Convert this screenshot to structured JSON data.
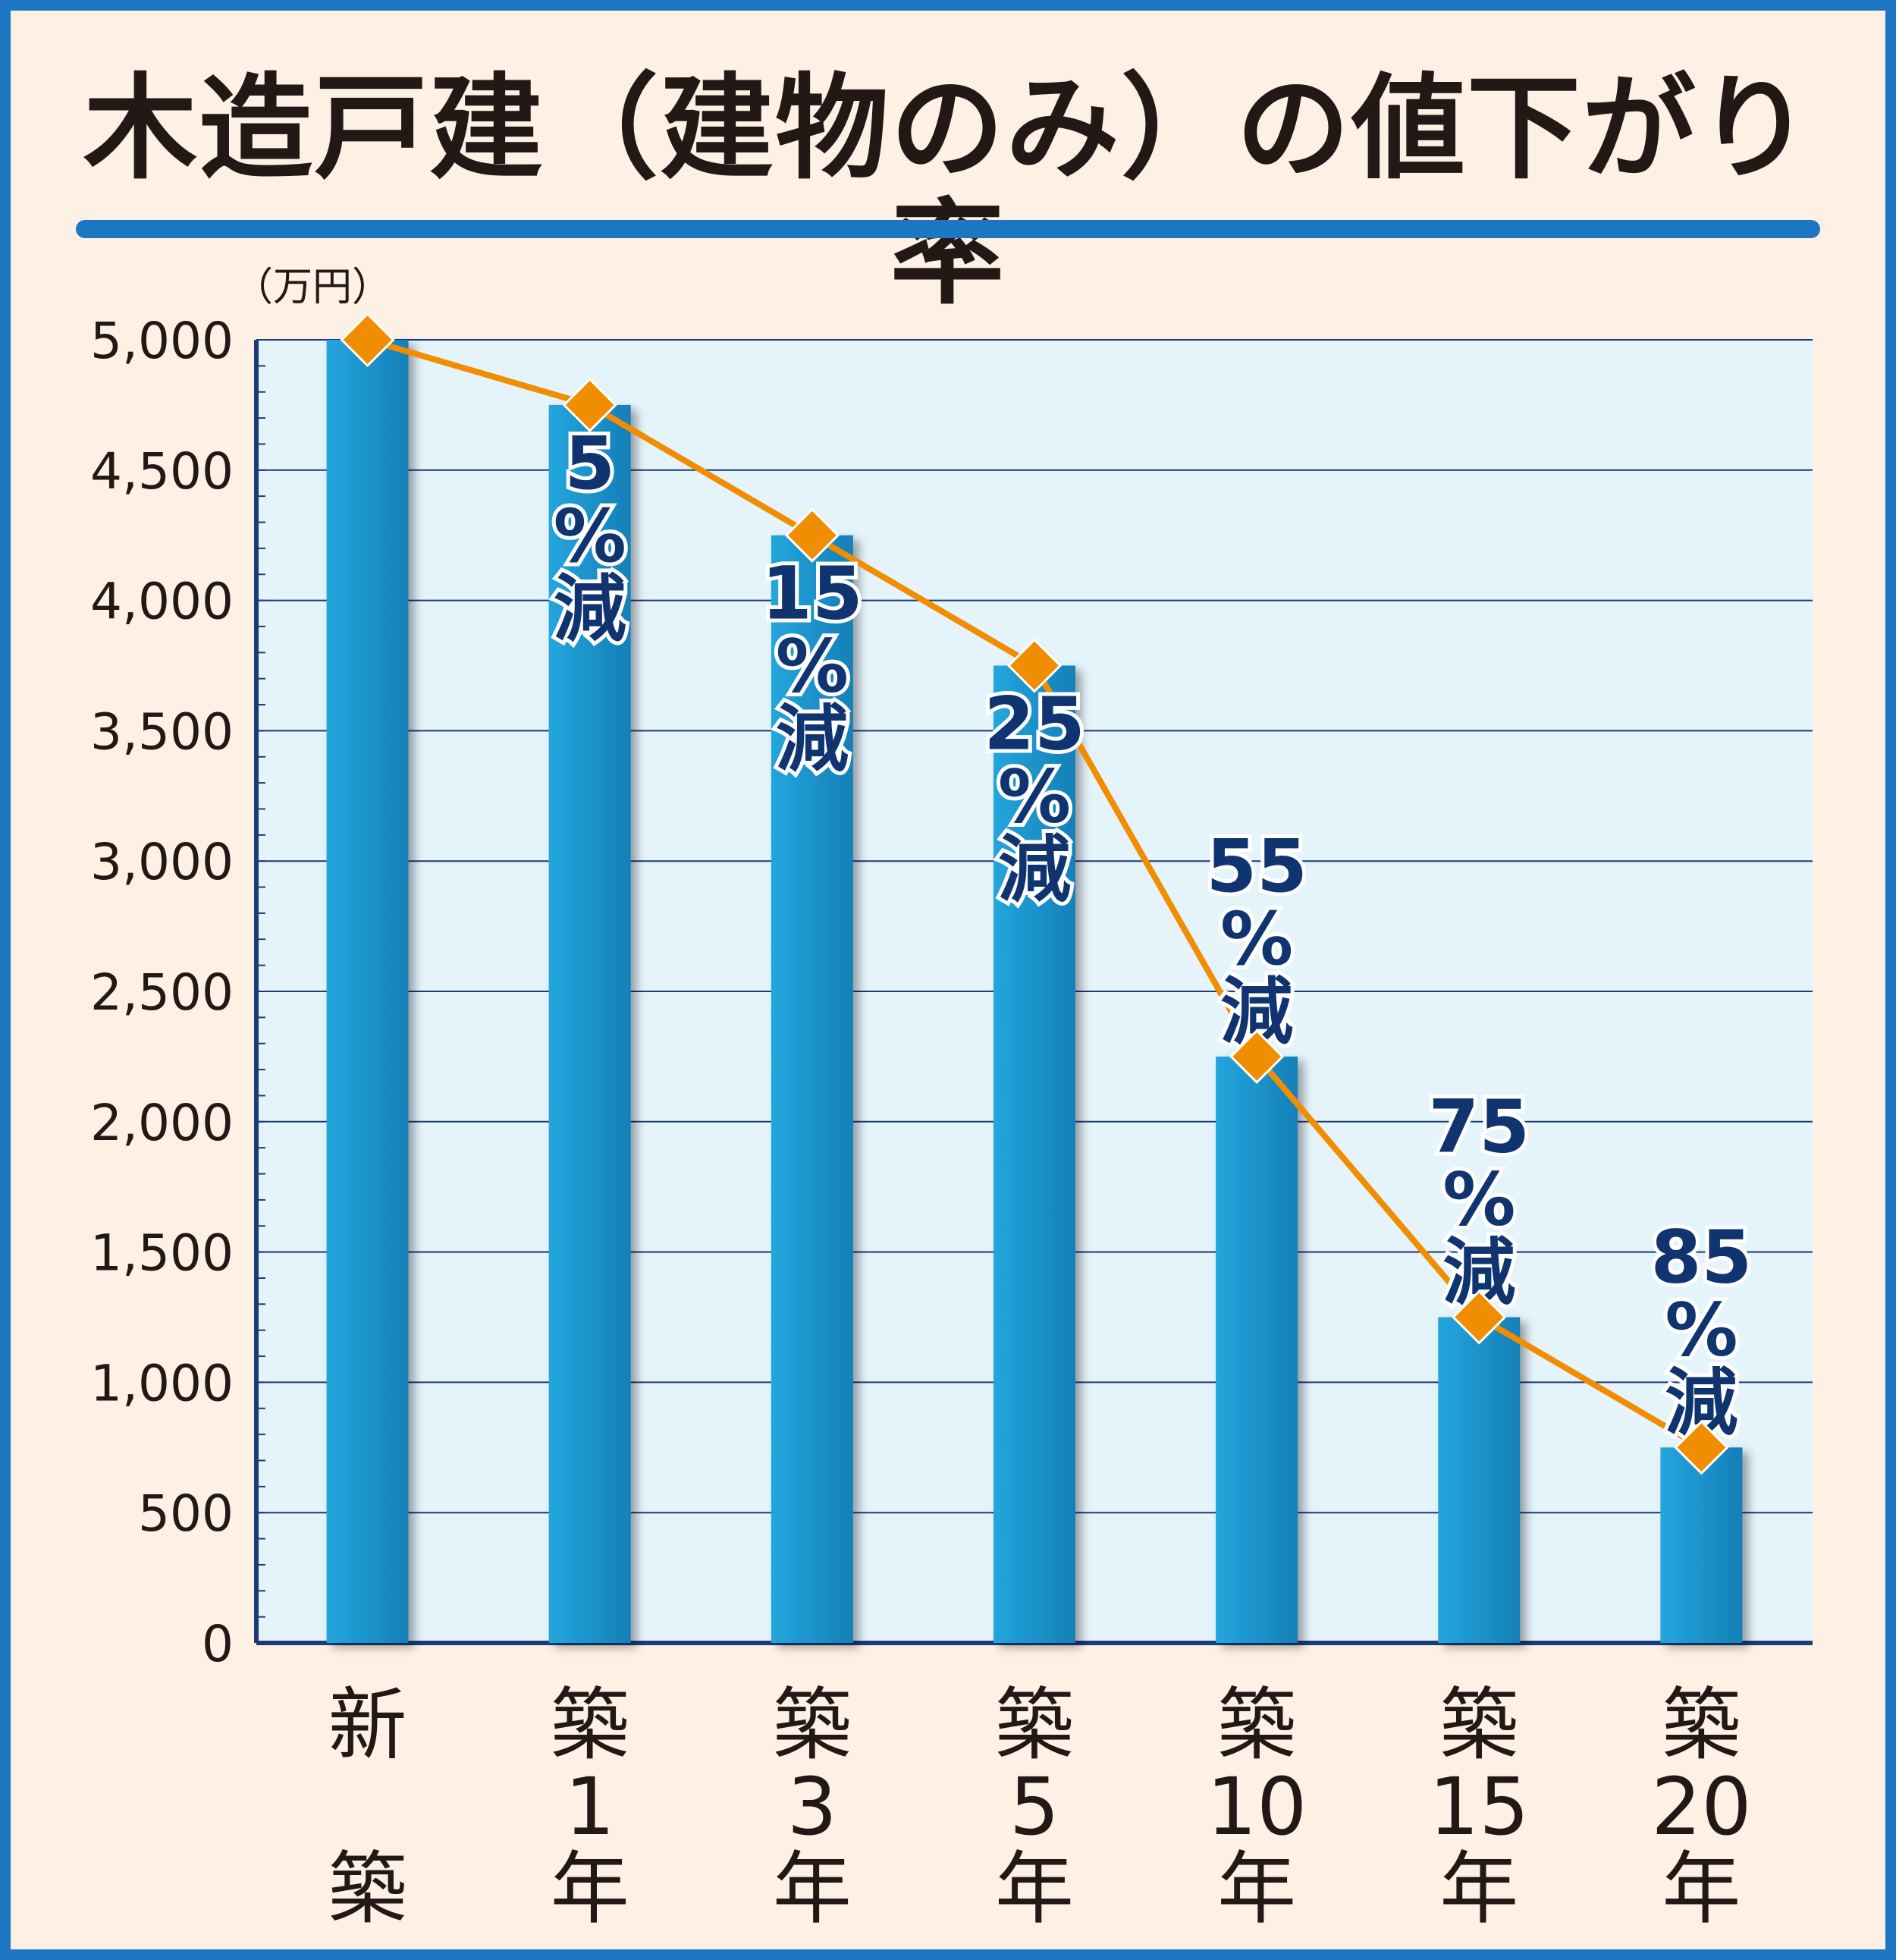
{
  "title": "木造戸建（建物のみ）の値下がり率",
  "colors": {
    "frame": "#1d76c2",
    "background": "#fdf1e5",
    "plot_background": "#e5f3fb",
    "bar": "#1891cc",
    "line": "#f18d00",
    "marker": "#f18d00",
    "axis": "#1a3a78",
    "data_label": "#0f3470"
  },
  "chart_data": {
    "type": "bar",
    "title": "木造戸建（建物のみ）の値下がり率",
    "unit": "（万円）",
    "categories": [
      "新築",
      "築1年",
      "築3年",
      "築5年",
      "築10年",
      "築15年",
      "築20年"
    ],
    "category_labels": [
      [
        "新",
        "",
        "築"
      ],
      [
        "築",
        "1",
        "年"
      ],
      [
        "築",
        "3",
        "年"
      ],
      [
        "築",
        "5",
        "年"
      ],
      [
        "築",
        "10",
        "年"
      ],
      [
        "築",
        "15",
        "年"
      ],
      [
        "築",
        "20",
        "年"
      ]
    ],
    "values": [
      5000,
      4750,
      4250,
      3750,
      2250,
      1250,
      750
    ],
    "overlay_line": {
      "values": [
        5000,
        4750,
        4250,
        3750,
        2250,
        1250,
        750
      ],
      "marker": "diamond"
    },
    "data_labels": [
      [],
      [
        "5",
        "%",
        "減"
      ],
      [
        "15",
        "%",
        "減"
      ],
      [
        "25",
        "%",
        "減"
      ],
      [
        "55",
        "%",
        "減"
      ],
      [
        "75",
        "%",
        "減"
      ],
      [
        "85",
        "%",
        "減"
      ]
    ],
    "xlabel": "",
    "ylabel": "",
    "ylim": [
      0,
      5000
    ],
    "yticks": [
      0,
      500,
      1000,
      1500,
      2000,
      2500,
      3000,
      3500,
      4000,
      4500,
      5000
    ],
    "ytick_labels": [
      "0",
      "500",
      "1,000",
      "1,500",
      "2,000",
      "2,500",
      "3,000",
      "3,500",
      "4,000",
      "4,500",
      "5,000"
    ],
    "grid": true,
    "legend": "none"
  }
}
